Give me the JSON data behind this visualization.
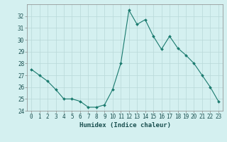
{
  "x": [
    0,
    1,
    2,
    3,
    4,
    5,
    6,
    7,
    8,
    9,
    10,
    11,
    12,
    13,
    14,
    15,
    16,
    17,
    18,
    19,
    20,
    21,
    22,
    23
  ],
  "y": [
    27.5,
    27.0,
    26.5,
    25.8,
    25.0,
    25.0,
    24.8,
    24.3,
    24.3,
    24.5,
    25.8,
    28.0,
    32.5,
    31.3,
    31.7,
    30.3,
    29.2,
    30.3,
    29.3,
    28.7,
    28.0,
    27.0,
    26.0,
    24.8
  ],
  "line_color": "#1a7a6e",
  "marker": "D",
  "marker_size": 2,
  "bg_color": "#d4f0f0",
  "grid_color": "#b8d8d8",
  "xlabel": "Humidex (Indice chaleur)",
  "xlim": [
    -0.5,
    23.5
  ],
  "ylim": [
    24,
    33
  ],
  "yticks": [
    24,
    25,
    26,
    27,
    28,
    29,
    30,
    31,
    32
  ],
  "xticks": [
    0,
    1,
    2,
    3,
    4,
    5,
    6,
    7,
    8,
    9,
    10,
    11,
    12,
    13,
    14,
    15,
    16,
    17,
    18,
    19,
    20,
    21,
    22,
    23
  ],
  "tick_fontsize": 5.5,
  "xlabel_fontsize": 6.5,
  "line_width": 0.8
}
